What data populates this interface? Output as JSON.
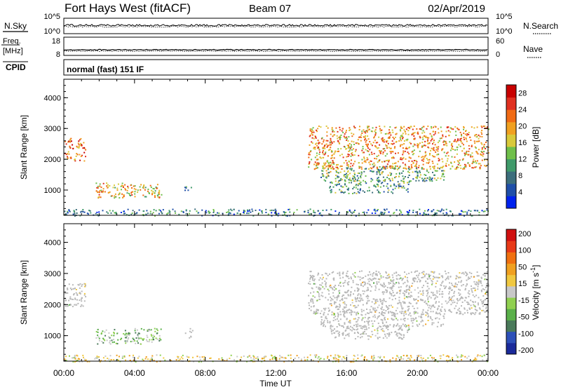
{
  "header": {
    "station": "Fort Hays West (fitACF)",
    "beam": "Beam 07",
    "date": "02/Apr/2019"
  },
  "params": {
    "nsky_label": "N.Sky",
    "nsearch_label": "N.Search",
    "freq_label_1": "Freq.",
    "freq_label_2": "[MHz]",
    "nave_label": "Nave",
    "cpid_label": "CPID",
    "cpid_value": "normal (fast) 151 IF",
    "noise_left_ticks": [
      "10^5",
      "10^0"
    ],
    "noise_right_ticks": [
      "10^5",
      "10^0"
    ],
    "freq_ticks": [
      "18",
      "8"
    ],
    "nave_ticks": [
      "60",
      "0"
    ]
  },
  "colors": {
    "power_scale": [
      "#0022ee",
      "#1f4fa8",
      "#3c6e7c",
      "#3f9a6a",
      "#6fbf4a",
      "#d8c93a",
      "#f0a020",
      "#f06a14",
      "#e03020",
      "#c80000"
    ],
    "velocity_scale": [
      "#1a2a9a",
      "#2d50b8",
      "#4a7a5a",
      "#5ab04a",
      "#90d050",
      "#c8c8c8",
      "#f0c840",
      "#f0a020",
      "#f07010",
      "#e83a18",
      "#d01010"
    ],
    "ground_scatter": "#b8b8b8"
  },
  "chart_data": [
    {
      "type": "heatmap",
      "title": "",
      "xlabel": "",
      "ylabel": "Slant Range [km]",
      "x_ticks": [
        "00:00",
        "04:00",
        "08:00",
        "12:00",
        "16:00",
        "20:00",
        "00:00"
      ],
      "y_ticks": [
        "1000",
        "2000",
        "3000",
        "4000"
      ],
      "xlim_hours": [
        0,
        24
      ],
      "ylim_km": [
        180,
        4600
      ],
      "colorbar": {
        "label": "Power [dB]",
        "ticks": [
          "4",
          "8",
          "12",
          "16",
          "20",
          "24",
          "28"
        ],
        "range": [
          0,
          30
        ]
      },
      "scatter_regions": [
        {
          "t0": 0.0,
          "t1": 1.2,
          "r0": 1950,
          "r1": 2700,
          "value": 22
        },
        {
          "t0": 1.8,
          "t1": 5.5,
          "r0": 750,
          "r1": 1250,
          "value": 18
        },
        {
          "t0": 6.8,
          "t1": 7.3,
          "r0": 950,
          "r1": 1250,
          "value": 12
        },
        {
          "t0": 13.8,
          "t1": 24.0,
          "r0": 1700,
          "r1": 3100,
          "value": 20
        },
        {
          "t0": 14.5,
          "t1": 21.5,
          "r0": 1300,
          "r1": 1800,
          "value": 12
        },
        {
          "t0": 15.0,
          "t1": 19.5,
          "r0": 900,
          "r1": 1350,
          "value": 10
        },
        {
          "t0": 0.0,
          "t1": 24.0,
          "r0": 180,
          "r1": 400,
          "value": 8
        }
      ]
    },
    {
      "type": "heatmap",
      "title": "",
      "xlabel": "Time UT",
      "ylabel": "Slant Range [km]",
      "x_ticks": [
        "00:00",
        "04:00",
        "08:00",
        "12:00",
        "16:00",
        "20:00",
        "00:00"
      ],
      "y_ticks": [
        "1000",
        "2000",
        "3000",
        "4000"
      ],
      "xlim_hours": [
        0,
        24
      ],
      "ylim_km": [
        180,
        4600
      ],
      "colorbar": {
        "label": "Velocity [m s^-1]",
        "ticks": [
          "200",
          "100",
          "50",
          "15",
          "-15",
          "-50",
          "-100",
          "-200"
        ],
        "range": [
          -250,
          250
        ]
      },
      "scatter_regions": [
        {
          "t0": 0.0,
          "t1": 1.2,
          "r0": 1950,
          "r1": 2700,
          "value": 0,
          "ground_scatter": true
        },
        {
          "t0": 1.8,
          "t1": 5.5,
          "r0": 750,
          "r1": 1250,
          "value": -60
        },
        {
          "t0": 6.8,
          "t1": 7.3,
          "r0": 950,
          "r1": 1250,
          "value": 0,
          "ground_scatter": true
        },
        {
          "t0": 13.8,
          "t1": 24.0,
          "r0": 1700,
          "r1": 3100,
          "value": 0,
          "ground_scatter": true
        },
        {
          "t0": 14.5,
          "t1": 21.5,
          "r0": 1300,
          "r1": 1800,
          "value": 0,
          "ground_scatter": true
        },
        {
          "t0": 15.0,
          "t1": 19.5,
          "r0": 900,
          "r1": 1350,
          "value": 0,
          "ground_scatter": true
        },
        {
          "t0": 0.0,
          "t1": 24.0,
          "r0": 180,
          "r1": 400,
          "value": 30
        }
      ]
    }
  ]
}
